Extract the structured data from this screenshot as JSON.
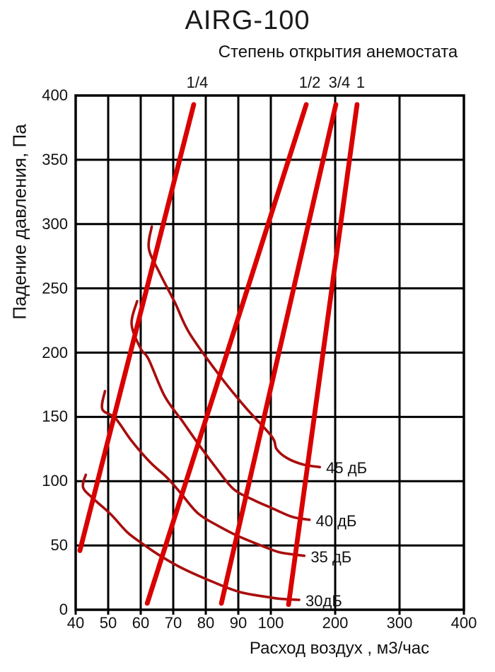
{
  "chart_data": {
    "type": "line",
    "title": "AIRG-100",
    "top_axis_title": "Степень открытия анемостата",
    "xlabel": "Расход воздух , м3/час",
    "ylabel": "Падение давления, Па",
    "x_ticks": [
      40,
      50,
      60,
      70,
      80,
      90,
      100,
      200,
      300,
      400
    ],
    "y_ticks": [
      0,
      50,
      100,
      150,
      200,
      250,
      300,
      350,
      400
    ],
    "xlim": [
      40,
      400
    ],
    "ylim": [
      0,
      400
    ],
    "grid": true,
    "x_scale_note": "quasi-log: ticks 40-100 evenly spaced, then 100-400 evenly spaced",
    "colors": {
      "opening_line": "#d90000",
      "noise_curve": "#a80d0d",
      "grid": "#000000",
      "text": "#111111"
    },
    "opening_lines": [
      {
        "label": "1/4",
        "points": [
          [
            41.3,
            46
          ],
          [
            76.3,
            393
          ]
        ]
      },
      {
        "label": "1/2",
        "points": [
          [
            62.0,
            5
          ],
          [
            155.0,
            393
          ]
        ]
      },
      {
        "label": "3/4",
        "points": [
          [
            84.8,
            5
          ],
          [
            201.0,
            393
          ]
        ]
      },
      {
        "label": "1",
        "points": [
          [
            127.5,
            4
          ],
          [
            234.0,
            393
          ]
        ]
      }
    ],
    "noise_curves": [
      {
        "label": "45 дБ",
        "points": [
          [
            63.4,
            298
          ],
          [
            62.5,
            281
          ],
          [
            65.8,
            262
          ],
          [
            70.5,
            239
          ],
          [
            75,
            215
          ],
          [
            84,
            183
          ],
          [
            92,
            158
          ],
          [
            101,
            135
          ],
          [
            109,
            125
          ],
          [
            125,
            118
          ],
          [
            150,
            113
          ],
          [
            176,
            111
          ]
        ]
      },
      {
        "label": "40 дБ",
        "points": [
          [
            58.9,
            240
          ],
          [
            57.2,
            222
          ],
          [
            60,
            203
          ],
          [
            62.4,
            195
          ],
          [
            67.4,
            166
          ],
          [
            73,
            146
          ],
          [
            78,
            128
          ],
          [
            83,
            111
          ],
          [
            88.5,
            94
          ],
          [
            95,
            85
          ],
          [
            99.5,
            80
          ],
          [
            115,
            76
          ],
          [
            135,
            72
          ],
          [
            160,
            70
          ]
        ]
      },
      {
        "label": "35 дБ",
        "points": [
          [
            49,
            170
          ],
          [
            48.2,
            156
          ],
          [
            52.2,
            149
          ],
          [
            57,
            132
          ],
          [
            62.8,
            115
          ],
          [
            68,
            103
          ],
          [
            72.2,
            91
          ],
          [
            77.6,
            75
          ],
          [
            84,
            65
          ],
          [
            90.2,
            57
          ],
          [
            100,
            47
          ],
          [
            115,
            44.5
          ],
          [
            135,
            43
          ],
          [
            152,
            42
          ]
        ]
      },
      {
        "label": "30дБ",
        "points": [
          [
            43.1,
            105
          ],
          [
            42.3,
            95
          ],
          [
            45.6,
            86
          ],
          [
            50.9,
            74
          ],
          [
            56,
            60
          ],
          [
            61.3,
            50
          ],
          [
            66,
            42
          ],
          [
            72.2,
            33
          ],
          [
            80,
            24
          ],
          [
            90.2,
            14
          ],
          [
            100,
            9.5
          ],
          [
            115,
            8.5
          ],
          [
            130,
            8
          ],
          [
            144,
            7.7
          ]
        ]
      }
    ]
  }
}
